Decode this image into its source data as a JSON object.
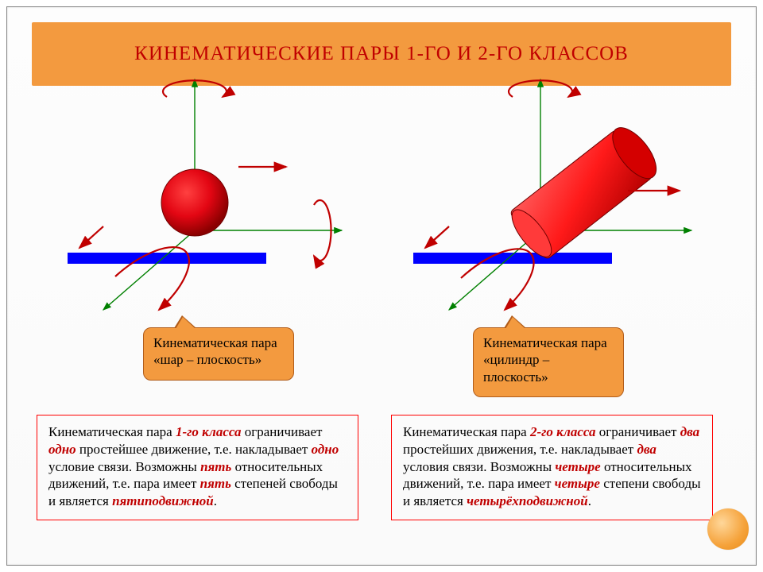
{
  "page": {
    "background": "#ffffff",
    "frame_border": "#888888"
  },
  "title": {
    "text": "КИНЕМАТИЧЕСКИЕ ПАРЫ 1-ГО И 2-ГО КЛАССОВ",
    "bg": "#f39a3f",
    "color": "#c00000",
    "fontsize": 25
  },
  "colors": {
    "axis": "#008000",
    "arrow": "#c00000",
    "plane": "#0000ff",
    "sphere_fill": "#e30613",
    "sphere_shadow": "#8a0000",
    "cylinder_fill": "#ff1a1a",
    "cylinder_dark": "#b40000",
    "callout_bg": "#f39a3f",
    "callout_border": "#b15c1a",
    "desc_border": "#ff0000",
    "desc_em": "#c00000"
  },
  "left": {
    "callout": "Кинематическая пара «шар – плоскость»",
    "desc_plain": [
      "Кинематическая пара ",
      " ограничивает ",
      " простейшее движение, т.е. накладывает ",
      " условие связи. Возможны ",
      " относительных движений, т.е. пара имеет ",
      " степеней свободы и является ",
      "."
    ],
    "desc_em": [
      "1-го класса",
      "одно",
      "одно",
      "пять",
      "пять",
      "пятиподвижной"
    ]
  },
  "right": {
    "callout": "Кинематическая пара «цилиндр – плоскость»",
    "desc_plain": [
      "Кинематическая пара ",
      " ограничивает ",
      " простейших движения, т.е. накладывает ",
      " условия связи. Возможны ",
      " относительных движений, т.е. пара имеет ",
      " степени свободы и является ",
      "."
    ],
    "desc_em": [
      "2-го класса",
      "два",
      "два",
      "четыре",
      "четыре",
      "четырёхподвижной"
    ]
  },
  "geom": {
    "axis_stroke_width": 1.4,
    "plane_height": 14,
    "arrow_stroke_width": 2.2,
    "rot_ellipse_stroke": 2.2
  }
}
